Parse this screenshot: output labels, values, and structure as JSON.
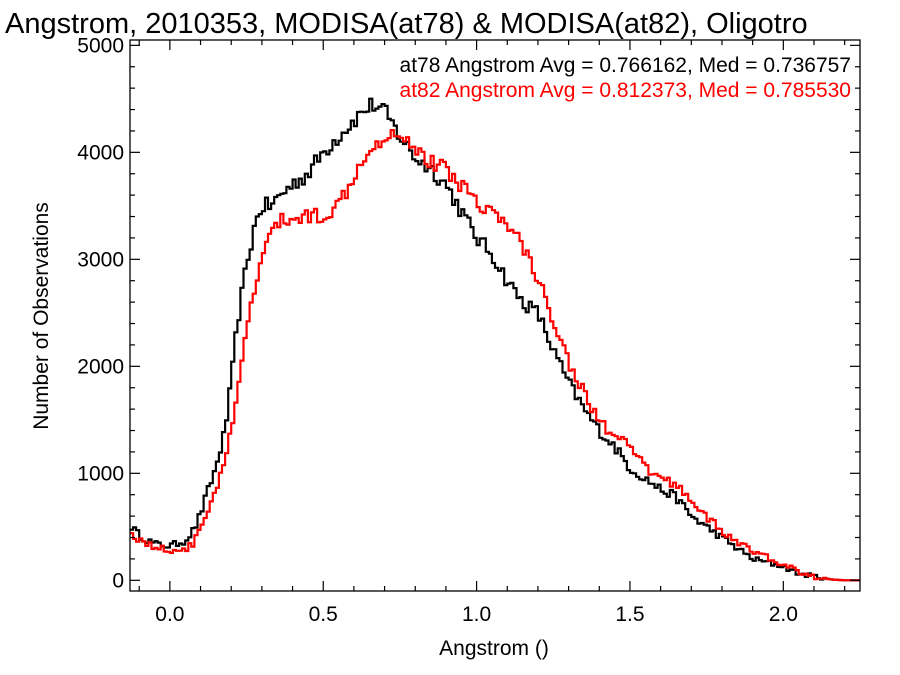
{
  "chart_data": {
    "type": "line",
    "title": "Angstrom, 2010353, MODISA(at78) & MODISA(at82), Oligotro",
    "xlabel": "Angstrom ()",
    "ylabel": "Number of Observations",
    "xlim": [
      -0.13,
      2.25
    ],
    "ylim": [
      -100,
      5050
    ],
    "xticks": [
      0.0,
      0.5,
      1.0,
      1.5,
      2.0
    ],
    "xtick_labels": [
      "0.0",
      "0.5",
      "1.0",
      "1.5",
      "2.0"
    ],
    "yticks": [
      0,
      1000,
      2000,
      3000,
      4000,
      5000
    ],
    "ytick_labels": [
      "0",
      "1000",
      "2000",
      "3000",
      "4000",
      "5000"
    ],
    "grid": false,
    "legend_position": "top-right",
    "step_style": "histogram",
    "series": [
      {
        "name": "at78",
        "legend": "at78 Angstrom Avg = 0.766162, Med = 0.736757",
        "color": "#000000",
        "x": [
          -0.13,
          -0.1,
          -0.05,
          0.0,
          0.05,
          0.08,
          0.1,
          0.12,
          0.15,
          0.18,
          0.2,
          0.22,
          0.25,
          0.28,
          0.3,
          0.33,
          0.36,
          0.4,
          0.45,
          0.5,
          0.55,
          0.6,
          0.63,
          0.66,
          0.7,
          0.75,
          0.8,
          0.85,
          0.9,
          0.95,
          1.0,
          1.05,
          1.1,
          1.15,
          1.2,
          1.25,
          1.3,
          1.35,
          1.4,
          1.45,
          1.5,
          1.55,
          1.6,
          1.65,
          1.7,
          1.8,
          1.9,
          2.0,
          2.05,
          2.1,
          2.15,
          2.2
        ],
        "y": [
          520,
          420,
          340,
          320,
          370,
          480,
          620,
          800,
          1050,
          1400,
          1850,
          2400,
          2950,
          3350,
          3500,
          3500,
          3600,
          3700,
          3800,
          4000,
          4150,
          4300,
          4380,
          4450,
          4380,
          4150,
          3950,
          3850,
          3700,
          3450,
          3200,
          3050,
          2800,
          2600,
          2500,
          2150,
          1850,
          1600,
          1400,
          1250,
          1050,
          950,
          850,
          780,
          600,
          400,
          200,
          130,
          60,
          40,
          10,
          0
        ]
      },
      {
        "name": "at82",
        "legend": "at82 Angstrom Avg = 0.812373, Med = 0.785530",
        "color": "#ff0000",
        "x": [
          -0.13,
          -0.1,
          -0.05,
          0.0,
          0.05,
          0.08,
          0.1,
          0.13,
          0.15,
          0.18,
          0.2,
          0.23,
          0.25,
          0.28,
          0.3,
          0.33,
          0.36,
          0.4,
          0.45,
          0.5,
          0.55,
          0.6,
          0.65,
          0.7,
          0.75,
          0.8,
          0.85,
          0.9,
          0.95,
          1.0,
          1.05,
          1.1,
          1.15,
          1.2,
          1.25,
          1.3,
          1.35,
          1.4,
          1.45,
          1.5,
          1.55,
          1.6,
          1.65,
          1.7,
          1.8,
          1.9,
          2.0,
          2.05,
          2.1,
          2.15,
          2.2
        ],
        "y": [
          450,
          380,
          310,
          280,
          290,
          350,
          500,
          700,
          850,
          1100,
          1400,
          1900,
          2350,
          2750,
          3050,
          3250,
          3350,
          3380,
          3400,
          3420,
          3500,
          3800,
          4050,
          4150,
          4200,
          4050,
          3900,
          3850,
          3700,
          3550,
          3450,
          3300,
          3150,
          2800,
          2450,
          2050,
          1750,
          1500,
          1330,
          1250,
          1050,
          950,
          900,
          750,
          450,
          270,
          150,
          80,
          30,
          10,
          0
        ]
      }
    ]
  }
}
